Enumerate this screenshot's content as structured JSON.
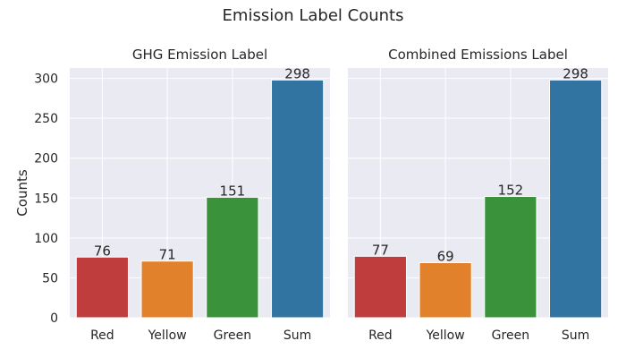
{
  "figure": {
    "title": "Emission Label Counts"
  },
  "colors": {
    "panel_bg": "#eaeaf2",
    "grid": "#ffffff",
    "text": "#262626"
  },
  "chart_data": [
    {
      "type": "bar",
      "title": "GHG Emission Label",
      "ylabel": "Counts",
      "xlabel": "",
      "ylim": [
        0,
        313
      ],
      "yticks": [
        0,
        50,
        100,
        150,
        200,
        250,
        300
      ],
      "categories": [
        "Red",
        "Yellow",
        "Green",
        "Sum"
      ],
      "values": [
        76,
        71,
        151,
        298
      ],
      "data_labels": [
        "76",
        "71",
        "151",
        "298"
      ],
      "colors": [
        "#c03d3e",
        "#e1812c",
        "#3a923a",
        "#3274a1"
      ],
      "grid": true
    },
    {
      "type": "bar",
      "title": "Combined Emissions Label",
      "ylabel": "",
      "xlabel": "",
      "ylim": [
        0,
        313
      ],
      "yticks": [
        0,
        50,
        100,
        150,
        200,
        250,
        300
      ],
      "categories": [
        "Red",
        "Yellow",
        "Green",
        "Sum"
      ],
      "values": [
        77,
        69,
        152,
        298
      ],
      "data_labels": [
        "77",
        "69",
        "152",
        "298"
      ],
      "colors": [
        "#c03d3e",
        "#e1812c",
        "#3a923a",
        "#3274a1"
      ],
      "grid": true
    }
  ]
}
